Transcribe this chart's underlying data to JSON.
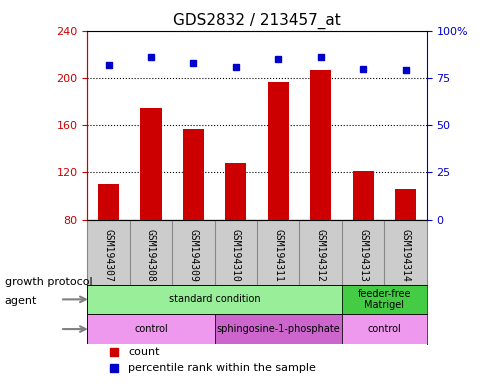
{
  "title": "GDS2832 / 213457_at",
  "samples": [
    "GSM194307",
    "GSM194308",
    "GSM194309",
    "GSM194310",
    "GSM194311",
    "GSM194312",
    "GSM194313",
    "GSM194314"
  ],
  "counts": [
    110,
    175,
    157,
    128,
    197,
    207,
    121,
    106
  ],
  "percentile_ranks": [
    82,
    86,
    83,
    81,
    85,
    86,
    80,
    79
  ],
  "ylim_left": [
    80,
    240
  ],
  "ylim_right": [
    0,
    100
  ],
  "yticks_left": [
    80,
    120,
    160,
    200,
    240
  ],
  "yticks_right": [
    0,
    25,
    50,
    75,
    100
  ],
  "bar_color": "#cc0000",
  "dot_color": "#0000cc",
  "bar_width": 0.5,
  "grid_color": "black",
  "growth_protocol_row": {
    "groups": [
      {
        "label": "standard condition",
        "start": 0,
        "end": 6,
        "color": "#99ee99"
      },
      {
        "label": "feeder-free\nMatrigel",
        "start": 6,
        "end": 8,
        "color": "#44cc44"
      }
    ]
  },
  "agent_row": {
    "groups": [
      {
        "label": "control",
        "start": 0,
        "end": 3,
        "color": "#ee99ee"
      },
      {
        "label": "sphingosine-1-phosphate",
        "start": 3,
        "end": 6,
        "color": "#cc66cc"
      },
      {
        "label": "control",
        "start": 6,
        "end": 8,
        "color": "#ee99ee"
      }
    ]
  },
  "legend_items": [
    {
      "label": "count",
      "color": "#cc0000",
      "marker": "s"
    },
    {
      "label": "percentile rank within the sample",
      "color": "#0000cc",
      "marker": "s"
    }
  ],
  "row_labels": [
    "growth protocol",
    "agent"
  ],
  "sample_box_color": "#cccccc",
  "sample_box_edge": "#888888"
}
